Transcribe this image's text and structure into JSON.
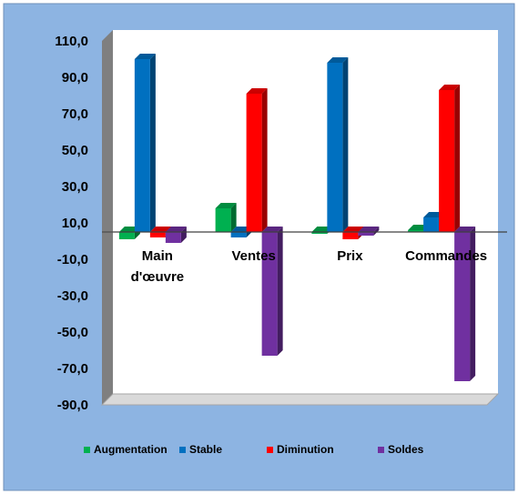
{
  "chart_data": {
    "type": "bar",
    "title": "",
    "xlabel": "",
    "ylabel": "",
    "categories": [
      "Main\nd'œuvre",
      "Ventes",
      "Prix",
      "Commandes"
    ],
    "series": [
      {
        "name": "Augmentation",
        "values": [
          1.0,
          18.0,
          4.0,
          6.0
        ],
        "color": "#00B050"
      },
      {
        "name": "Stable",
        "values": [
          100.0,
          2.0,
          98.0,
          13.0
        ],
        "color": "#0070C0"
      },
      {
        "name": "Diminution",
        "values": [
          2.0,
          81.0,
          1.0,
          83.0
        ],
        "color": "#FF0000"
      },
      {
        "name": "Soldes",
        "values": [
          -1.0,
          -63.0,
          3.0,
          -77.0
        ],
        "color": "#7030A0"
      }
    ],
    "ylim": [
      -90,
      110
    ],
    "yticks": [
      110,
      90,
      70,
      50,
      30,
      10,
      -10,
      -30,
      -50,
      -70,
      -90
    ],
    "ytick_labels": [
      "110,0",
      "90,0",
      "70,0",
      "50,0",
      "30,0",
      "10,0",
      "-10,0",
      "-30,0",
      "-50,0",
      "-70,0",
      "-90,0"
    ],
    "baseline": 5,
    "grid": false,
    "legend_position": "bottom",
    "background_color": "#8DB4E2",
    "wall_color": "#FFFFFF",
    "side_wall_color": "#7F7F7F"
  }
}
